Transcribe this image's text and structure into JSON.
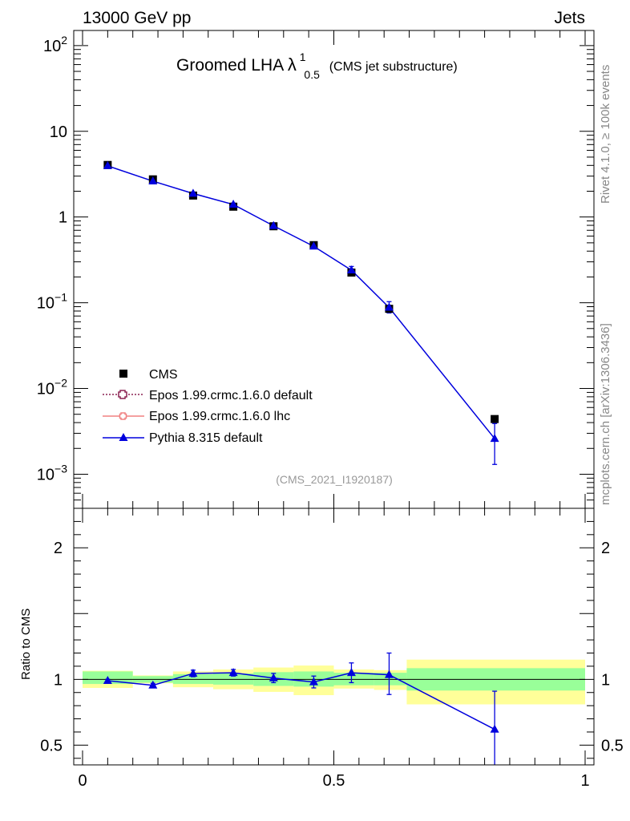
{
  "header": {
    "left": "13000 GeV pp",
    "right": "Jets"
  },
  "title": {
    "main": "Groomed LHA",
    "symbol": "λ",
    "sup": "1",
    "sub": "0.5",
    "tail": "(CMS jet substructure)"
  },
  "side": {
    "rivet": "Rivet 4.1.0, ≥ 100k events",
    "mcplots": "mcplots.cern.ch [arXiv:1306.3436]"
  },
  "analysis_id": "(CMS_2021_I1920187)",
  "colors": {
    "data": "#000000",
    "epos_default": "#8b2252",
    "epos_lhc": "#f08080",
    "pythia": "#0000dd",
    "band_inner": "#99ff99",
    "band_outer": "#ffff99"
  },
  "chart_data": [
    {
      "type": "line",
      "name": "main",
      "title": "Groomed LHA λ^1_0.5 (CMS jet substructure)",
      "xlabel": "",
      "ylabel": "",
      "xlim": [
        0,
        1
      ],
      "ylim": [
        0.0004,
        150
      ],
      "yscale": "log",
      "ytick_labels": [
        {
          "v": 100,
          "base": "10",
          "exp": "2"
        },
        {
          "v": 10,
          "base": "10",
          "exp": ""
        },
        {
          "v": 1,
          "base": "1",
          "exp": ""
        },
        {
          "v": 0.1,
          "base": "10",
          "exp": "−1"
        },
        {
          "v": 0.01,
          "base": "10",
          "exp": "−2"
        },
        {
          "v": 0.001,
          "base": "10",
          "exp": "−3"
        }
      ],
      "legend_position": "bottom-left",
      "legend": [
        {
          "key": "cms",
          "label": "CMS"
        },
        {
          "key": "epos_default",
          "label": "Epos 1.99.crmc.1.6.0 default"
        },
        {
          "key": "epos_lhc",
          "label": "Epos 1.99.crmc.1.6.0 lhc"
        },
        {
          "key": "pythia",
          "label": "Pythia 8.315 default"
        }
      ],
      "bins": [
        [
          0.0,
          0.1
        ],
        [
          0.1,
          0.18
        ],
        [
          0.18,
          0.26
        ],
        [
          0.26,
          0.34
        ],
        [
          0.34,
          0.42
        ],
        [
          0.42,
          0.5
        ],
        [
          0.5,
          0.58
        ],
        [
          0.58,
          0.645
        ],
        [
          0.645,
          1.0
        ]
      ],
      "series": [
        {
          "name": "CMS",
          "x": [
            0.05,
            0.14,
            0.22,
            0.3,
            0.38,
            0.46,
            0.535,
            0.61,
            0.82
          ],
          "values": [
            4.05,
            2.75,
            1.78,
            1.32,
            0.78,
            0.47,
            0.225,
            0.085,
            0.0044
          ]
        },
        {
          "name": "Pythia 8.315 default",
          "x": [
            0.05,
            0.14,
            0.22,
            0.3,
            0.38,
            0.46,
            0.535,
            0.61,
            0.82
          ],
          "values": [
            3.95,
            2.62,
            1.88,
            1.4,
            0.79,
            0.455,
            0.24,
            0.088,
            0.0026
          ],
          "err_low": [
            0.05,
            0.04,
            0.05,
            0.05,
            0.02,
            0.02,
            0.02,
            0.012,
            0.0013
          ],
          "err_high": [
            0.05,
            0.04,
            0.05,
            0.05,
            0.02,
            0.02,
            0.025,
            0.015,
            0.0013
          ]
        }
      ]
    },
    {
      "type": "line",
      "name": "ratio",
      "ylabel": "Ratio to CMS",
      "xlabel": "",
      "xlim": [
        0,
        1
      ],
      "ylim": [
        0.35,
        2.3
      ],
      "ytick_labels": [
        {
          "v": 2,
          "label": "2"
        },
        {
          "v": 1,
          "label": "1"
        },
        {
          "v": 0.5,
          "label": "0.5"
        }
      ],
      "xtick_labels": [
        {
          "v": 0,
          "label": "0"
        },
        {
          "v": 0.5,
          "label": "0.5"
        },
        {
          "v": 1,
          "label": "1"
        }
      ],
      "bands": [
        {
          "x": [
            0.0,
            0.1
          ],
          "inner": [
            0.965,
            1.06
          ],
          "outer": [
            0.935,
            1.065
          ]
        },
        {
          "x": [
            0.1,
            0.18
          ],
          "inner": [
            0.975,
            1.025
          ],
          "outer": [
            0.97,
            1.03
          ]
        },
        {
          "x": [
            0.18,
            0.26
          ],
          "inner": [
            0.965,
            1.04
          ],
          "outer": [
            0.94,
            1.06
          ]
        },
        {
          "x": [
            0.26,
            0.34
          ],
          "inner": [
            0.96,
            1.045
          ],
          "outer": [
            0.925,
            1.075
          ]
        },
        {
          "x": [
            0.34,
            0.42
          ],
          "inner": [
            0.95,
            1.055
          ],
          "outer": [
            0.905,
            1.09
          ]
        },
        {
          "x": [
            0.42,
            0.5
          ],
          "inner": [
            0.945,
            1.06
          ],
          "outer": [
            0.88,
            1.105
          ]
        },
        {
          "x": [
            0.5,
            0.58
          ],
          "inner": [
            0.955,
            1.05
          ],
          "outer": [
            0.93,
            1.075
          ]
        },
        {
          "x": [
            0.58,
            0.645
          ],
          "inner": [
            0.955,
            1.05
          ],
          "outer": [
            0.92,
            1.07
          ]
        },
        {
          "x": [
            0.645,
            1.0
          ],
          "inner": [
            0.915,
            1.085
          ],
          "outer": [
            0.81,
            1.15
          ]
        }
      ],
      "series": [
        {
          "name": "Pythia 8.315 default / CMS",
          "x": [
            0.05,
            0.14,
            0.22,
            0.3,
            0.38,
            0.46,
            0.535,
            0.61,
            0.82
          ],
          "values": [
            0.99,
            0.955,
            1.045,
            1.05,
            1.01,
            0.98,
            1.05,
            1.035,
            0.62
          ],
          "err_low": [
            0.01,
            0.015,
            0.025,
            0.025,
            0.035,
            0.045,
            0.075,
            0.15,
            0.3
          ],
          "err_high": [
            0.01,
            0.015,
            0.025,
            0.025,
            0.035,
            0.045,
            0.075,
            0.165,
            0.29
          ]
        }
      ]
    }
  ]
}
